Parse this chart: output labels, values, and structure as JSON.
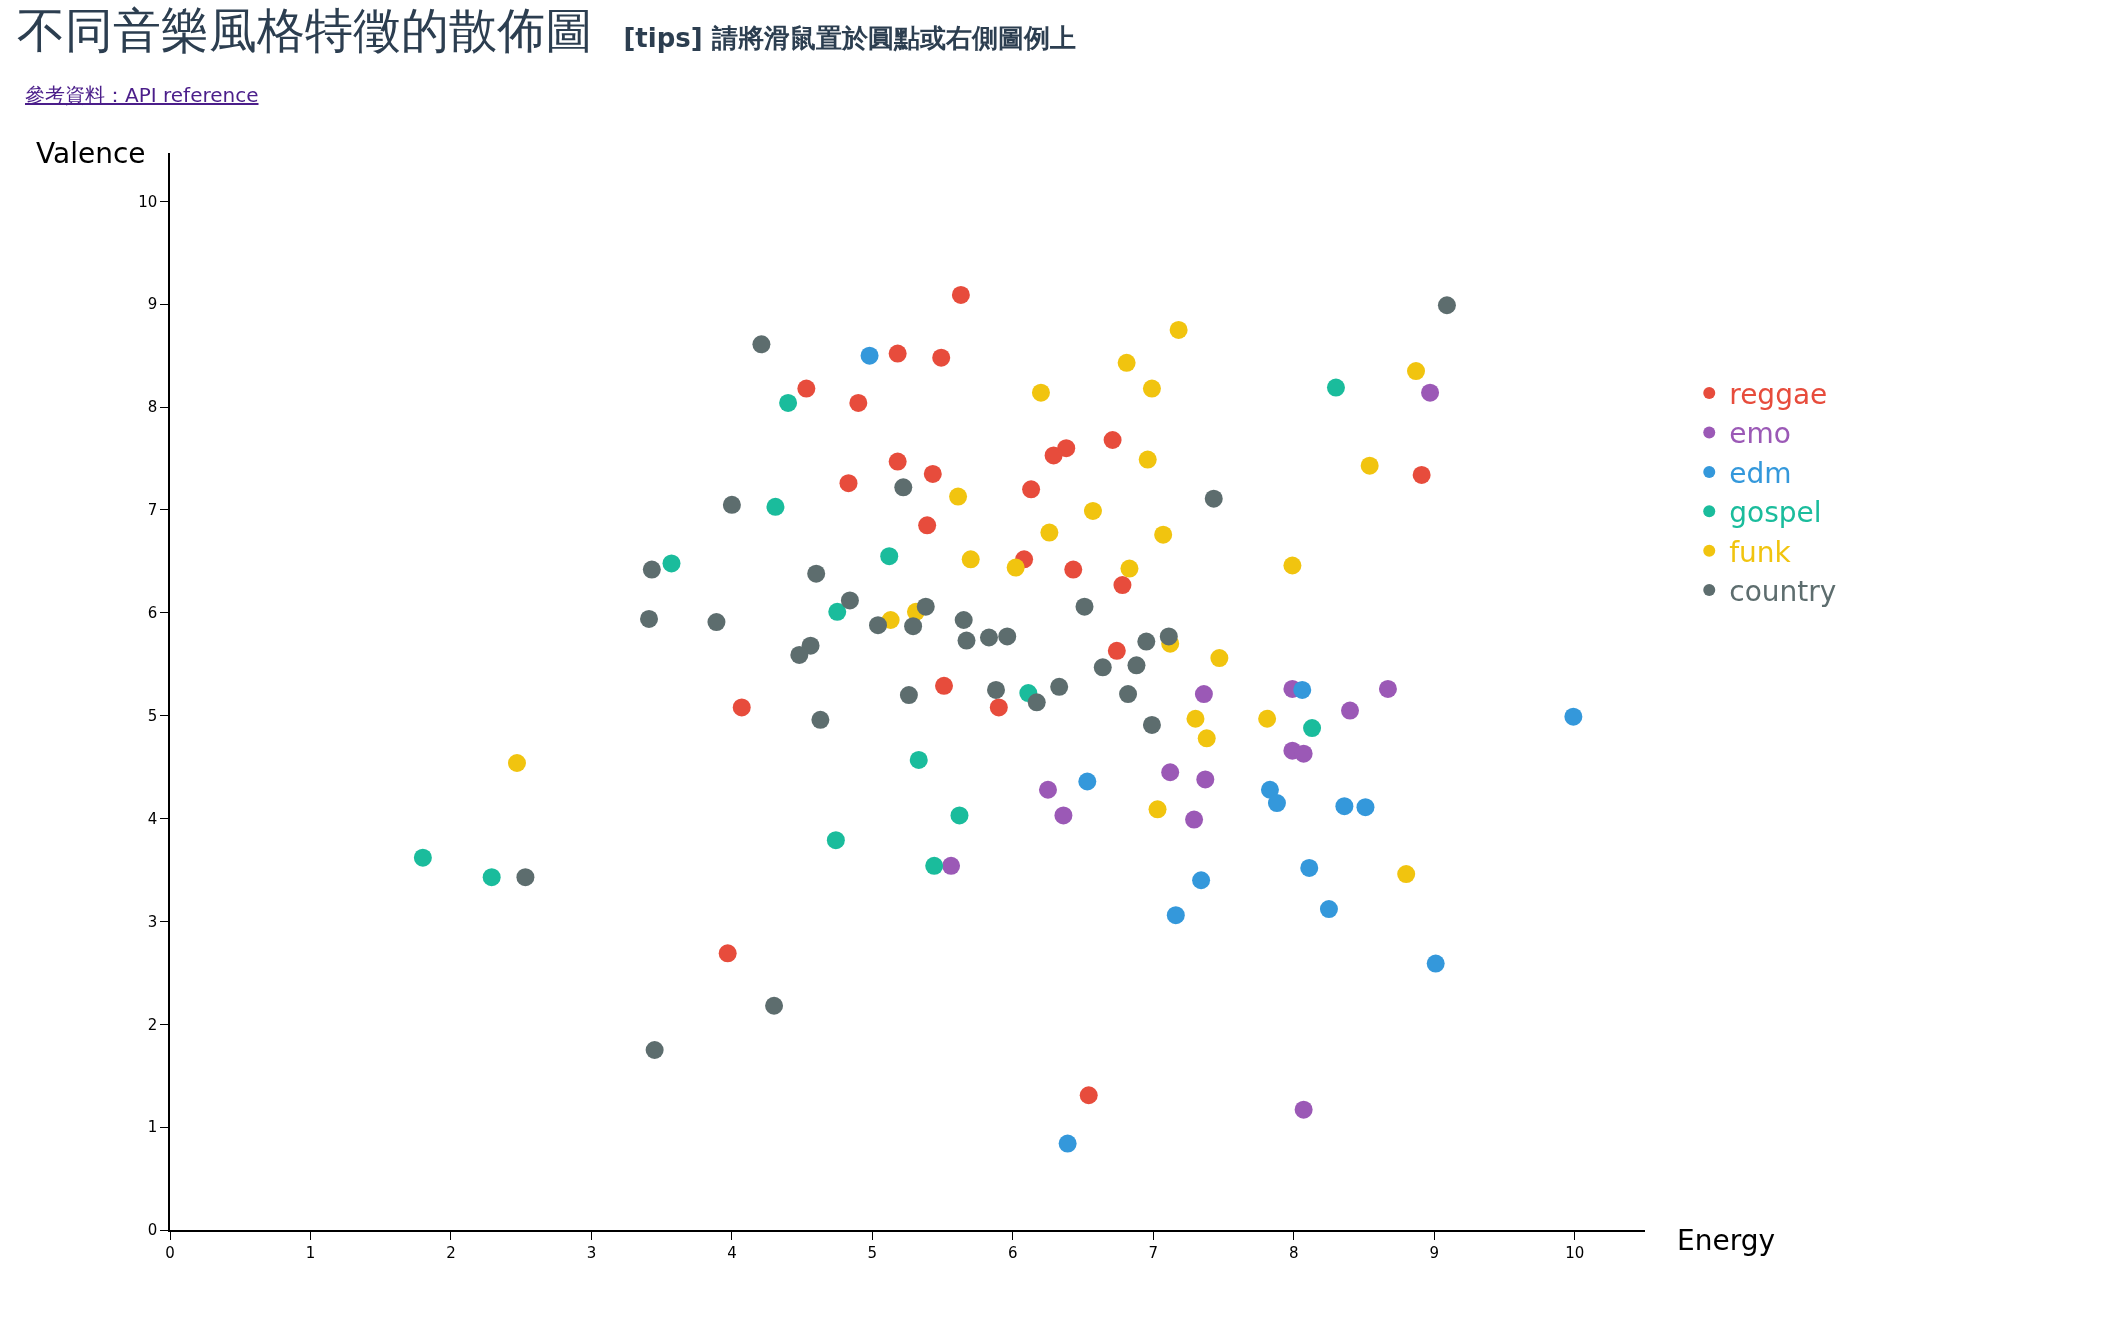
{
  "chart_data": {
    "type": "scatter",
    "title": "不同音樂風格特徵的散佈圖",
    "subtitle": "[tips] 請將滑鼠置於圓點或右側圖例上",
    "annotations": [
      "參考資料：API reference"
    ],
    "xlabel": "Energy",
    "ylabel": "Valence",
    "xlim": [
      0,
      10.5
    ],
    "ylim": [
      0,
      10.47
    ],
    "xticks": [
      0,
      1,
      2,
      3,
      4,
      5,
      6,
      7,
      8,
      9,
      10
    ],
    "yticks": [
      0,
      1,
      2,
      3,
      4,
      5,
      6,
      7,
      8,
      9,
      10
    ],
    "legend": "top right",
    "marker": "circle",
    "series": [
      {
        "name": "reggae",
        "color": "#e74c3c",
        "x": [
          5.63,
          5.18,
          5.49,
          4.53,
          4.9,
          5.18,
          5.43,
          4.83,
          6.71,
          6.38,
          6.29,
          6.13,
          5.39,
          6.08,
          6.43,
          6.78,
          8.91,
          6.74,
          5.51,
          5.9,
          4.07,
          3.97,
          6.54
        ],
        "values": [
          9.09,
          8.52,
          8.48,
          8.18,
          8.04,
          7.47,
          7.35,
          7.26,
          7.68,
          7.6,
          7.53,
          7.2,
          6.85,
          6.52,
          6.42,
          6.27,
          7.34,
          5.63,
          5.29,
          5.08,
          5.08,
          2.69,
          1.31
        ]
      },
      {
        "name": "emo",
        "color": "#9b59b6",
        "x": [
          8.97,
          7.99,
          8.67,
          8.4,
          7.36,
          7.99,
          8.07,
          7.12,
          7.37,
          6.25,
          6.36,
          7.29,
          5.56,
          8.07
        ],
        "values": [
          8.14,
          5.26,
          5.26,
          5.05,
          5.21,
          4.66,
          4.63,
          4.45,
          4.38,
          4.28,
          4.03,
          3.99,
          3.54,
          1.17
        ]
      },
      {
        "name": "edm",
        "color": "#3498db",
        "x": [
          4.98,
          8.06,
          9.99,
          6.53,
          7.83,
          7.88,
          8.36,
          8.51,
          8.11,
          7.34,
          8.25,
          7.16,
          9.01,
          6.39
        ],
        "values": [
          8.5,
          5.25,
          4.99,
          4.36,
          4.28,
          4.15,
          4.12,
          4.11,
          3.52,
          3.4,
          3.12,
          3.06,
          2.59,
          0.84
        ]
      },
      {
        "name": "gospel",
        "color": "#1abc9c",
        "x": [
          8.3,
          4.4,
          4.31,
          3.57,
          5.12,
          4.75,
          6.11,
          8.13,
          5.33,
          5.62,
          4.74,
          5.44,
          1.8,
          2.29
        ],
        "values": [
          8.19,
          8.04,
          7.03,
          6.48,
          6.55,
          6.01,
          5.22,
          4.88,
          4.57,
          4.03,
          3.79,
          3.54,
          3.62,
          3.43
        ]
      },
      {
        "name": "funk",
        "color": "#f1c40f",
        "x": [
          7.18,
          6.81,
          8.87,
          6.2,
          6.99,
          6.96,
          8.54,
          5.61,
          6.57,
          6.26,
          7.07,
          5.7,
          6.02,
          6.83,
          7.99,
          5.31,
          5.13,
          7.12,
          7.47,
          7.3,
          7.81,
          7.38,
          7.03,
          2.47,
          8.8
        ],
        "values": [
          8.75,
          8.43,
          8.35,
          8.14,
          8.18,
          7.49,
          7.43,
          7.13,
          6.99,
          6.78,
          6.76,
          6.52,
          6.44,
          6.43,
          6.46,
          6.01,
          5.93,
          5.7,
          5.56,
          4.97,
          4.97,
          4.78,
          4.09,
          4.54,
          3.46
        ]
      },
      {
        "name": "country",
        "color": "#5d6d6e",
        "x": [
          9.09,
          4.21,
          5.22,
          7.43,
          4.0,
          3.43,
          4.6,
          4.84,
          5.38,
          3.41,
          3.89,
          5.65,
          5.04,
          5.29,
          5.67,
          5.83,
          5.96,
          6.51,
          6.95,
          7.11,
          4.56,
          4.48,
          6.64,
          6.88,
          5.88,
          6.33,
          6.17,
          5.26,
          6.82,
          4.63,
          6.99,
          2.53,
          4.3,
          3.45
        ],
        "values": [
          8.99,
          8.61,
          7.22,
          7.11,
          7.05,
          6.42,
          6.38,
          6.12,
          6.06,
          5.94,
          5.91,
          5.93,
          5.88,
          5.87,
          5.73,
          5.76,
          5.77,
          6.06,
          5.72,
          5.77,
          5.68,
          5.59,
          5.47,
          5.49,
          5.25,
          5.28,
          5.13,
          5.2,
          5.21,
          4.96,
          4.91,
          3.43,
          2.18,
          1.75
        ]
      }
    ]
  }
}
